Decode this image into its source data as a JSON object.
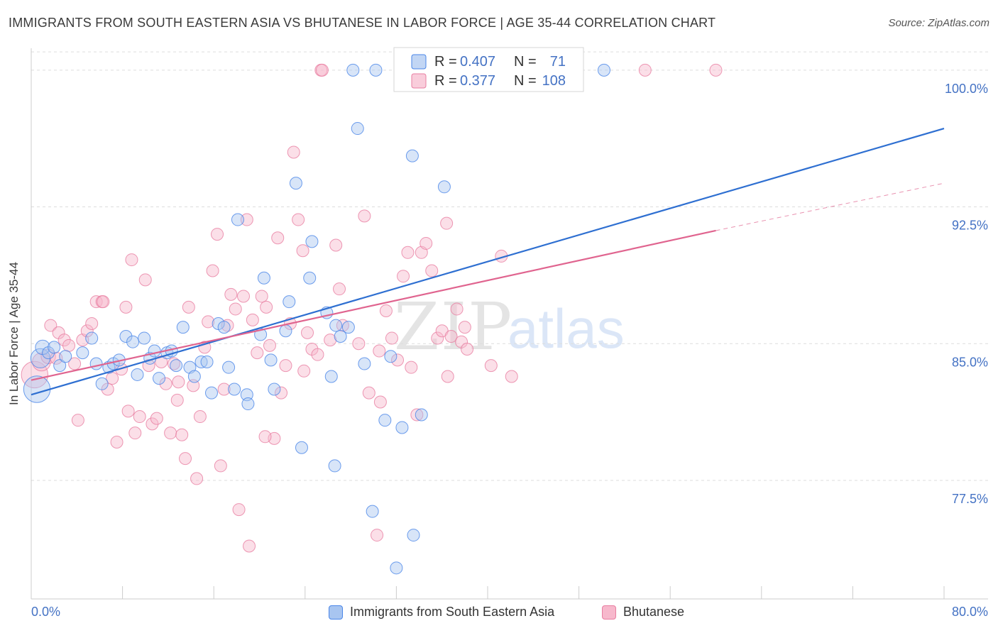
{
  "title": "IMMIGRANTS FROM SOUTH EASTERN ASIA VS BHUTANESE IN LABOR FORCE | AGE 35-44 CORRELATION CHART",
  "source": "Source: ZipAtlas.com",
  "watermark": {
    "zip": "ZIP",
    "atlas": "atlas"
  },
  "colors": {
    "blue": "#4a86e8",
    "blue_fill": "#a8c5f0",
    "blue_line": "#2e6fd1",
    "pink": "#e87ea1",
    "pink_fill": "#f7b8cc",
    "pink_line": "#e0648f",
    "axis_text": "#4472c4",
    "grid": "#dddddd"
  },
  "legend_top": {
    "rows": [
      {
        "r_label": "R = ",
        "r_value": "0.407",
        "n_label": "N = ",
        "n_value": "71",
        "color": "blue"
      },
      {
        "r_label": "R = ",
        "r_value": "0.377",
        "n_label": "N = ",
        "n_value": "108",
        "color": "pink"
      }
    ]
  },
  "legend_bottom": {
    "items": [
      {
        "label": "Immigrants from South Eastern Asia",
        "color": "blue"
      },
      {
        "label": "Bhutanese",
        "color": "pink"
      }
    ]
  },
  "chart_data": {
    "type": "scatter",
    "title": "IMMIGRANTS FROM SOUTH EASTERN ASIA VS BHUTANESE IN LABOR FORCE | AGE 35-44 CORRELATION CHART",
    "xlabel": "",
    "ylabel": "In Labor Force | Age 35-44",
    "xlim": [
      0,
      80
    ],
    "ylim": [
      71.0,
      101.2
    ],
    "x_tick_labels": [
      "0.0%",
      "80.0%"
    ],
    "y_ticks": [
      77.5,
      85.0,
      92.5,
      100.0
    ],
    "y_tick_labels": [
      "77.5%",
      "85.0%",
      "92.5%",
      "100.0%"
    ],
    "grid": true,
    "legend_placement": "top-center",
    "series": [
      {
        "name": "Immigrants from South Eastern Asia",
        "color": "blue",
        "trend": {
          "x": [
            0,
            80
          ],
          "y": [
            82.2,
            96.8
          ],
          "dashed_from": null
        },
        "points": [
          [
            0.5,
            82.5,
            2.2
          ],
          [
            0.8,
            84.2,
            1.6
          ],
          [
            1.0,
            84.8,
            1.2
          ],
          [
            1.5,
            84.5,
            1.0
          ],
          [
            2.0,
            84.8,
            1
          ],
          [
            2.5,
            83.8,
            1
          ],
          [
            3.0,
            84.3,
            1
          ],
          [
            4.5,
            84.5,
            1
          ],
          [
            5.3,
            85.3,
            1
          ],
          [
            5.7,
            83.9,
            1
          ],
          [
            6.2,
            82.8,
            1
          ],
          [
            6.8,
            83.7,
            1
          ],
          [
            7.2,
            83.9,
            1
          ],
          [
            7.7,
            84.1,
            1
          ],
          [
            8.3,
            85.4,
            1
          ],
          [
            8.9,
            85.1,
            1
          ],
          [
            9.3,
            83.3,
            1
          ],
          [
            9.9,
            85.3,
            1
          ],
          [
            10.4,
            84.2,
            1
          ],
          [
            10.8,
            84.6,
            1
          ],
          [
            11.2,
            83.1,
            1
          ],
          [
            11.9,
            84.5,
            1
          ],
          [
            12.3,
            84.6,
            1
          ],
          [
            12.7,
            83.8,
            1
          ],
          [
            13.3,
            85.9,
            1
          ],
          [
            13.9,
            83.7,
            1
          ],
          [
            14.3,
            83.2,
            1
          ],
          [
            14.9,
            84.0,
            1
          ],
          [
            15.4,
            84.0,
            1
          ],
          [
            15.8,
            82.3,
            1
          ],
          [
            16.4,
            86.1,
            1
          ],
          [
            16.9,
            85.9,
            1
          ],
          [
            17.3,
            83.7,
            1
          ],
          [
            17.8,
            82.5,
            1
          ],
          [
            18.1,
            91.8,
            1
          ],
          [
            18.9,
            82.2,
            1
          ],
          [
            19.0,
            81.7,
            1
          ],
          [
            20.1,
            85.5,
            1
          ],
          [
            20.4,
            88.6,
            1
          ],
          [
            21.0,
            84.1,
            1
          ],
          [
            21.3,
            82.5,
            1
          ],
          [
            22.3,
            85.7,
            1
          ],
          [
            22.6,
            87.3,
            1
          ],
          [
            23.2,
            93.8,
            1
          ],
          [
            23.7,
            79.3,
            1
          ],
          [
            24.4,
            88.6,
            1
          ],
          [
            24.6,
            90.6,
            1
          ],
          [
            25.9,
            86.7,
            1
          ],
          [
            26.3,
            83.2,
            1
          ],
          [
            26.6,
            78.3,
            1
          ],
          [
            27.1,
            85.4,
            1
          ],
          [
            27.8,
            85.9,
            1
          ],
          [
            28.2,
            100.0,
            1
          ],
          [
            28.6,
            96.8,
            1
          ],
          [
            29.2,
            83.9,
            1
          ],
          [
            30.2,
            100.0,
            1
          ],
          [
            29.9,
            75.8,
            1
          ],
          [
            31.0,
            80.8,
            1
          ],
          [
            31.5,
            84.3,
            1
          ],
          [
            32.0,
            72.7,
            1
          ],
          [
            32.5,
            80.4,
            1
          ],
          [
            33.4,
            95.3,
            1
          ],
          [
            33.5,
            74.5,
            1
          ],
          [
            34.2,
            81.1,
            1
          ],
          [
            36.2,
            93.6,
            1
          ],
          [
            37.2,
            100.0,
            1
          ],
          [
            39.8,
            100.0,
            1
          ],
          [
            43.0,
            100.0,
            1
          ],
          [
            47.5,
            100.0,
            1
          ],
          [
            50.2,
            100.0,
            1
          ],
          [
            26.7,
            86.0,
            1
          ]
        ]
      },
      {
        "name": "Bhutanese",
        "color": "pink",
        "trend": {
          "x": [
            0,
            60
          ],
          "y": [
            83.0,
            91.2
          ],
          "dashed_to": [
            80,
            93.8
          ]
        },
        "points": [
          [
            0.3,
            83.3,
            2.2
          ],
          [
            0.9,
            84.0,
            1.5
          ],
          [
            1.5,
            84.3,
            1.2
          ],
          [
            1.7,
            86.0,
            1
          ],
          [
            2.4,
            85.6,
            1
          ],
          [
            2.9,
            85.2,
            1
          ],
          [
            3.3,
            84.9,
            1
          ],
          [
            3.8,
            83.9,
            1
          ],
          [
            4.1,
            80.8,
            1
          ],
          [
            4.5,
            85.2,
            1
          ],
          [
            4.9,
            85.7,
            1
          ],
          [
            5.3,
            86.1,
            1
          ],
          [
            5.7,
            87.3,
            1
          ],
          [
            6.2,
            87.3,
            1
          ],
          [
            6.7,
            82.5,
            1
          ],
          [
            7.1,
            83.1,
            1
          ],
          [
            7.5,
            79.6,
            1
          ],
          [
            7.9,
            83.6,
            1
          ],
          [
            8.3,
            87.0,
            1
          ],
          [
            8.5,
            81.3,
            1
          ],
          [
            8.8,
            89.6,
            1
          ],
          [
            9.1,
            80.1,
            1
          ],
          [
            9.5,
            81.0,
            1
          ],
          [
            10.0,
            88.5,
            1
          ],
          [
            10.3,
            83.8,
            1
          ],
          [
            10.6,
            80.6,
            1
          ],
          [
            11.0,
            80.9,
            1
          ],
          [
            11.4,
            84.0,
            1
          ],
          [
            11.8,
            82.8,
            1
          ],
          [
            12.2,
            80.1,
            1
          ],
          [
            12.5,
            83.9,
            1
          ],
          [
            12.8,
            81.9,
            1
          ],
          [
            13.2,
            80.0,
            1
          ],
          [
            13.5,
            78.7,
            1
          ],
          [
            13.8,
            87.0,
            1
          ],
          [
            14.2,
            82.7,
            1
          ],
          [
            14.5,
            77.6,
            1
          ],
          [
            14.8,
            81.0,
            1
          ],
          [
            15.2,
            84.8,
            1
          ],
          [
            15.5,
            86.2,
            1
          ],
          [
            15.9,
            89.0,
            1
          ],
          [
            16.3,
            91.0,
            1
          ],
          [
            16.6,
            78.3,
            1
          ],
          [
            16.9,
            82.5,
            1
          ],
          [
            17.2,
            86.0,
            1
          ],
          [
            17.5,
            87.7,
            1
          ],
          [
            17.9,
            86.9,
            1
          ],
          [
            18.2,
            75.9,
            1
          ],
          [
            18.6,
            87.6,
            1
          ],
          [
            18.9,
            91.8,
            1
          ],
          [
            19.1,
            73.9,
            1
          ],
          [
            19.4,
            86.3,
            1
          ],
          [
            19.8,
            84.5,
            1
          ],
          [
            20.2,
            87.6,
            1
          ],
          [
            20.6,
            87.0,
            1
          ],
          [
            20.9,
            84.9,
            1
          ],
          [
            21.3,
            79.8,
            1
          ],
          [
            21.6,
            90.8,
            1
          ],
          [
            21.9,
            82.3,
            1
          ],
          [
            22.3,
            83.8,
            1
          ],
          [
            22.7,
            86.1,
            1
          ],
          [
            23.0,
            95.5,
            1
          ],
          [
            23.4,
            91.8,
            1
          ],
          [
            23.8,
            90.1,
            1
          ],
          [
            24.2,
            85.6,
            1
          ],
          [
            24.6,
            84.7,
            1
          ],
          [
            25.1,
            84.4,
            1
          ],
          [
            25.4,
            100.0,
            1
          ],
          [
            26.2,
            85.2,
            1
          ],
          [
            26.7,
            90.4,
            1
          ],
          [
            27.0,
            88.0,
            1
          ],
          [
            27.3,
            86.0,
            1
          ],
          [
            28.7,
            85.0,
            1
          ],
          [
            29.2,
            92.0,
            1
          ],
          [
            29.6,
            82.3,
            1
          ],
          [
            30.3,
            74.5,
            1
          ],
          [
            30.6,
            81.8,
            1
          ],
          [
            31.1,
            86.8,
            1
          ],
          [
            31.6,
            85.3,
            1
          ],
          [
            32.1,
            84.1,
            1
          ],
          [
            32.6,
            88.7,
            1
          ],
          [
            33.0,
            90.0,
            1
          ],
          [
            33.3,
            83.7,
            1
          ],
          [
            33.8,
            81.1,
            1
          ],
          [
            34.2,
            90.0,
            1
          ],
          [
            34.6,
            90.5,
            1
          ],
          [
            35.1,
            89.0,
            1
          ],
          [
            35.6,
            85.3,
            1
          ],
          [
            36.0,
            85.7,
            1
          ],
          [
            36.4,
            91.6,
            1
          ],
          [
            36.8,
            85.4,
            1
          ],
          [
            37.3,
            86.9,
            1
          ],
          [
            37.7,
            85.1,
            1
          ],
          [
            38.2,
            84.7,
            1
          ],
          [
            40.3,
            83.8,
            1
          ],
          [
            41.2,
            89.8,
            1
          ],
          [
            42.1,
            83.2,
            1
          ],
          [
            36.5,
            83.2,
            1
          ],
          [
            30.5,
            84.6,
            1
          ],
          [
            20.5,
            79.9,
            1
          ],
          [
            25.5,
            100.0,
            1
          ],
          [
            53.8,
            100.0,
            1
          ],
          [
            60.0,
            100.0,
            1
          ],
          [
            38.0,
            85.9,
            1
          ],
          [
            23.9,
            83.5,
            1
          ],
          [
            12.9,
            82.9,
            1
          ],
          [
            6.3,
            87.3,
            1
          ],
          [
            2.2,
            84.2,
            1
          ]
        ]
      }
    ]
  }
}
